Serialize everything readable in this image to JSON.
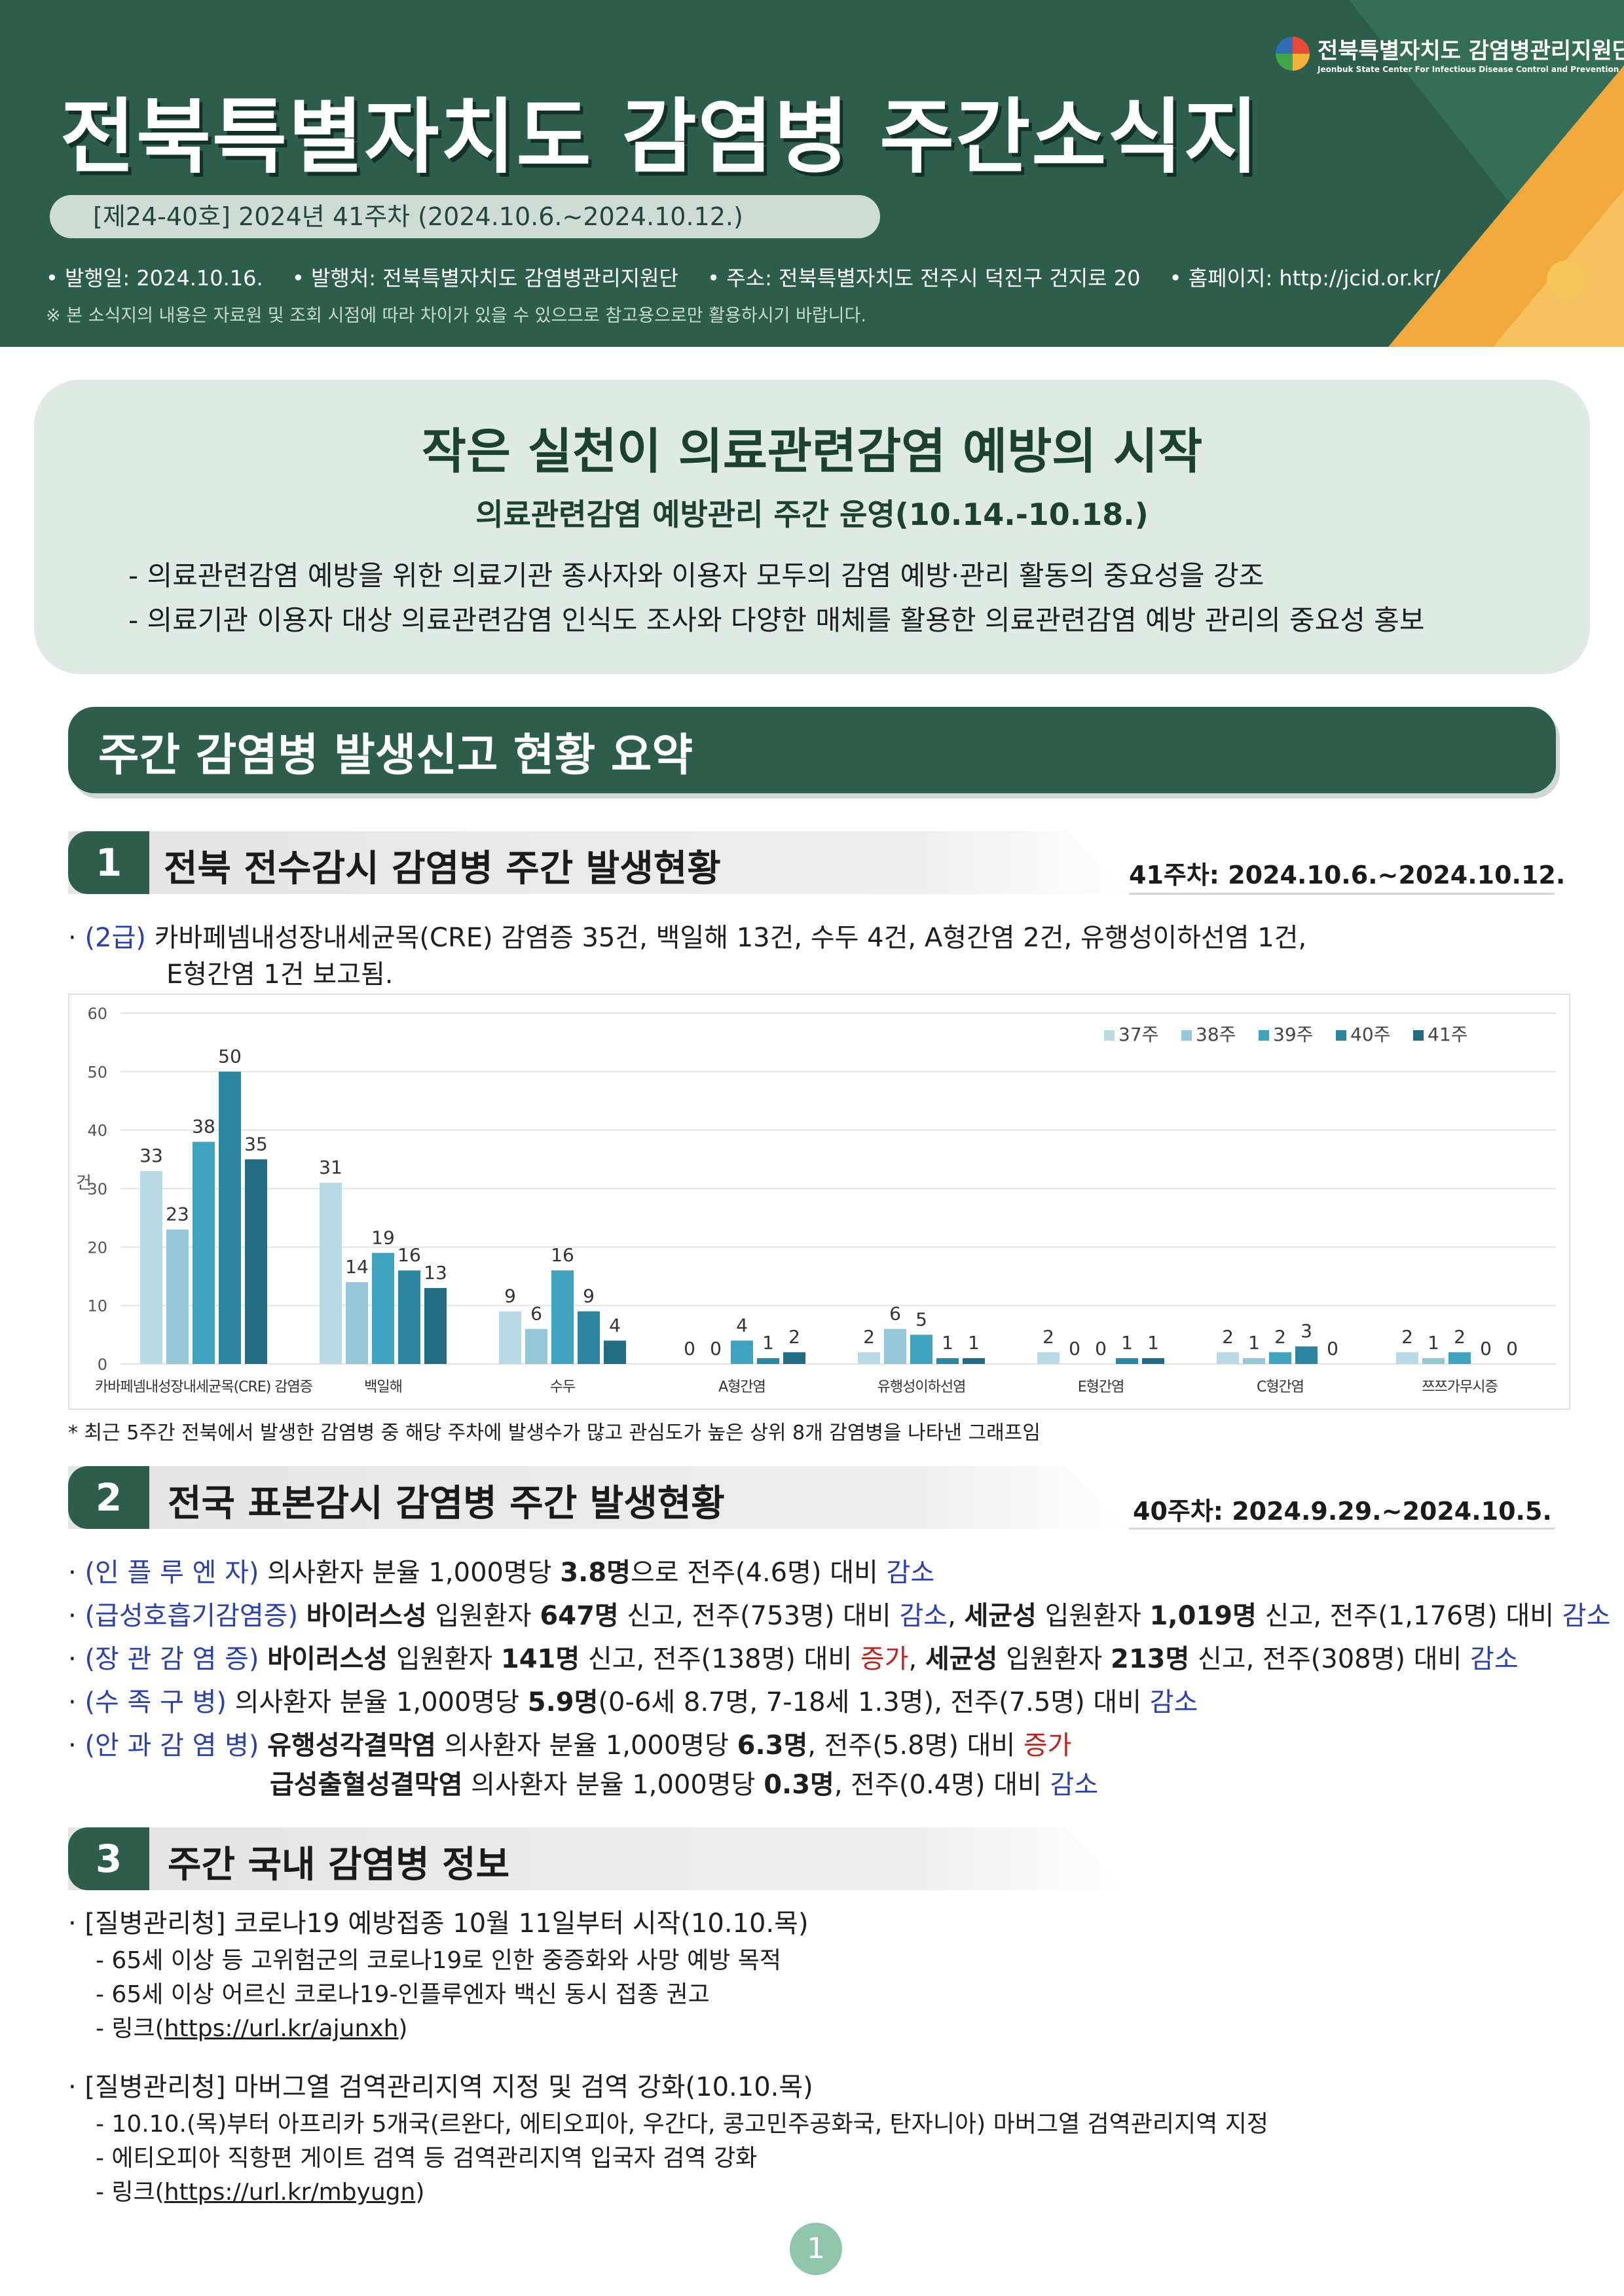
{
  "header": {
    "logo_kr": "전북특별자치도 감염병관리지원단",
    "logo_en": "Jeonbuk State Center For Infectious Disease Control and Prevention",
    "title": "전북특별자치도  감염병  주간소식지",
    "issue": "[제24-40호]  2024년  41주차  (2024.10.6.~2024.10.12.)",
    "meta": [
      "• 발행일: 2024.10.16.",
      "• 발행처: 전북특별자치도 감염병관리지원단",
      "• 주소: 전북특별자치도 전주시 덕진구 건지로 20",
      "• 홈페이지: http://jcid.or.kr/"
    ],
    "note": "※ 본 소식지의 내용은 자료원 및 조회 시점에 따라 차이가 있을 수 있으므로 참고용으로만 활용하시기 바랍니다."
  },
  "banner": {
    "title": "작은 실천이 의료관련감염 예방의 시작",
    "subtitle": "의료관련감염 예방관리 주간 운영(10.14.-10.18.)",
    "items": [
      "-  의료관련감염 예방을 위한 의료기관 종사자와 이용자 모두의 감염 예방·관리 활동의 중요성을 강조",
      "-  의료기관 이용자 대상 의료관련감염 인식도 조사와 다양한 매체를 활용한 의료관련감염 예방 관리의 중요성 홍보"
    ]
  },
  "summary_title": "주간  감염병  발생신고  현황  요약",
  "section1": {
    "num": "1",
    "title": "전북  전수감시  감염병  주간  발생현황",
    "date": "41주차:  2024.10.6.~2024.10.12.",
    "label": "(2급)",
    "line1": "카바페넴내성장내세균목(CRE)  감염증  35건,  백일해  13건,  수두  4건,  A형간염  2건,  유행성이하선염  1건,",
    "line2": "E형간염  1건  보고됨.",
    "footnote": "*  최근  5주간  전북에서  발생한  감염병  중  해당  주차에  발생수가  많고  관심도가  높은  상위  8개  감염병을  나타낸  그래프임"
  },
  "chart_data": {
    "type": "bar",
    "categories": [
      "카바페넴내성장내세균목(CRE) 감염증",
      "백일해",
      "수두",
      "A형간염",
      "유행성이하선염",
      "E형간염",
      "C형간염",
      "쯔쯔가무시증"
    ],
    "series": [
      {
        "name": "37주",
        "color": "#b9d9e4",
        "values": [
          33,
          31,
          9,
          0,
          2,
          2,
          2,
          2
        ]
      },
      {
        "name": "38주",
        "color": "#93c6d6",
        "values": [
          23,
          14,
          6,
          0,
          6,
          0,
          1,
          1
        ]
      },
      {
        "name": "39주",
        "color": "#3ea3be",
        "values": [
          38,
          19,
          16,
          4,
          5,
          0,
          2,
          2
        ]
      },
      {
        "name": "40주",
        "color": "#2d86a0",
        "values": [
          50,
          16,
          9,
          1,
          1,
          1,
          3,
          0
        ]
      },
      {
        "name": "41주",
        "color": "#236d83",
        "values": [
          35,
          13,
          4,
          2,
          1,
          1,
          0,
          0
        ]
      }
    ],
    "ylabel": "건",
    "ylim": [
      0,
      60
    ],
    "yticks": [
      "0",
      "10",
      "20",
      "30",
      "40",
      "50",
      "60"
    ],
    "legend": "top-right"
  },
  "section2": {
    "num": "2",
    "title": "전국  표본감시  감염병  주간  발생현황",
    "date": "40주차:  2024.9.29.~2024.10.5.",
    "rows": [
      {
        "label": "(인 플 루 엔 자)",
        "parts": [
          {
            "t": " 의사환자  분율  1,000명당  "
          },
          {
            "t": "3.8명",
            "c": "bold"
          },
          {
            "t": "으로  전주(4.6명)  대비  "
          },
          {
            "t": "감소",
            "c": "blue"
          }
        ]
      },
      {
        "label": "(급성호흡기감염증)",
        "parts": [
          {
            "t": " "
          },
          {
            "t": "바이러스성",
            "c": "bold"
          },
          {
            "t": "  입원환자  "
          },
          {
            "t": "647명",
            "c": "bold"
          },
          {
            "t": "  신고,  전주(753명)  대비  "
          },
          {
            "t": "감소",
            "c": "blue"
          },
          {
            "t": ",  "
          },
          {
            "t": "세균성",
            "c": "bold"
          },
          {
            "t": "  입원환자  "
          },
          {
            "t": "1,019명",
            "c": "bold"
          },
          {
            "t": "  신고,  전주(1,176명)  대비  "
          },
          {
            "t": "감소",
            "c": "blue"
          }
        ]
      },
      {
        "label": "(장 관 감 염 증)",
        "parts": [
          {
            "t": " "
          },
          {
            "t": "바이러스성",
            "c": "bold"
          },
          {
            "t": "  입원환자  "
          },
          {
            "t": "141명",
            "c": "bold"
          },
          {
            "t": "  신고,  전주(138명)  대비  "
          },
          {
            "t": "증가",
            "c": "red"
          },
          {
            "t": ",  "
          },
          {
            "t": "세균성",
            "c": "bold"
          },
          {
            "t": "  입원환자  "
          },
          {
            "t": "213명",
            "c": "bold"
          },
          {
            "t": "  신고,  전주(308명)  대비  "
          },
          {
            "t": "감소",
            "c": "blue"
          }
        ]
      },
      {
        "label": "(수   족   구   병)",
        "parts": [
          {
            "t": " 의사환자  분율  1,000명당  "
          },
          {
            "t": "5.9명",
            "c": "bold"
          },
          {
            "t": "(0-6세  8.7명,  7-18세  1.3명),  전주(7.5명)  대비  "
          },
          {
            "t": "감소",
            "c": "blue"
          }
        ]
      },
      {
        "label": "(안 과 감 염 병)",
        "parts": [
          {
            "t": " "
          },
          {
            "t": "유행성각결막염",
            "c": "bold"
          },
          {
            "t": "  의사환자  분율  1,000명당  "
          },
          {
            "t": "6.3명",
            "c": "bold"
          },
          {
            "t": ",  전주(5.8명)  대비  "
          },
          {
            "t": "증가",
            "c": "red"
          }
        ]
      },
      {
        "label": "",
        "parts": [
          {
            "t": "급성출혈성결막염",
            "c": "bold"
          },
          {
            "t": "  의사환자  분율  1,000명당  "
          },
          {
            "t": "0.3명",
            "c": "bold"
          },
          {
            "t": ",  전주(0.4명)  대비  "
          },
          {
            "t": "감소",
            "c": "blue"
          }
        ]
      }
    ]
  },
  "section3": {
    "num": "3",
    "title": "주간  국내  감염병  정보",
    "news1": {
      "title": "·  [질병관리청]  코로나19  예방접종  10월  11일부터  시작(10.10.목)",
      "items": [
        "-  65세  이상  등  고위험군의  코로나19로  인한  중증화와  사망  예방  목적",
        "-  65세  이상  어르신  코로나19-인플루엔자  백신  동시  접종  권고"
      ],
      "link_prefix": "-  링크(",
      "link": "https://url.kr/ajunxh",
      "link_suffix": ")"
    },
    "news2": {
      "title": "·  [질병관리청]  마버그열  검역관리지역  지정  및  검역  강화(10.10.목)",
      "items": [
        "-  10.10.(목)부터  아프리카  5개국(르완다,  에티오피아,  우간다,  콩고민주공화국,  탄자니아)  마버그열  검역관리지역  지정",
        "-  에티오피아  직항편  게이트  검역  등  검역관리지역  입국자  검역  강화"
      ],
      "link_prefix": "-  링크(",
      "link": "https://url.kr/mbyugn",
      "link_suffix": ")"
    }
  },
  "page_number": "1"
}
